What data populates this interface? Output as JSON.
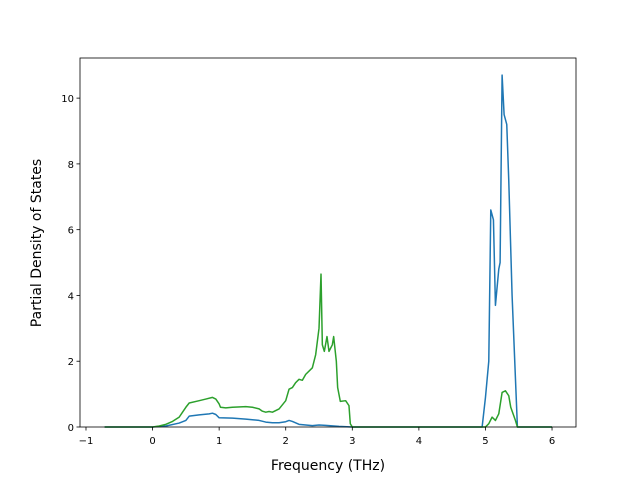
{
  "chart_data": {
    "type": "line",
    "x_label": "Frequency (THz)",
    "y_label": "Partial Density of States",
    "xlim": [
      -1.09,
      6.36
    ],
    "ylim": [
      0,
      11.22
    ],
    "xticks": [
      {
        "value": -1,
        "label": "−1"
      },
      0,
      1,
      2,
      3,
      4,
      5,
      6
    ],
    "yticks": [
      0,
      2,
      4,
      6,
      8,
      10
    ],
    "grid": false,
    "series": [
      {
        "color": "#1f77b4",
        "x": [
          -0.72,
          0,
          0.2,
          0.4,
          0.5,
          0.55,
          0.7,
          0.85,
          0.9,
          0.95,
          1.0,
          1.2,
          1.4,
          1.6,
          1.7,
          1.8,
          1.9,
          2.0,
          2.05,
          2.1,
          2.2,
          2.4,
          2.5,
          2.6,
          2.8,
          3.0,
          4.95,
          5.0,
          5.05,
          5.08,
          5.12,
          5.15,
          5.2,
          5.22,
          5.25,
          5.28,
          5.32,
          5.35,
          5.4,
          5.45,
          5.48,
          6.0
        ],
        "values": [
          0,
          0,
          0.03,
          0.12,
          0.2,
          0.33,
          0.37,
          0.4,
          0.42,
          0.38,
          0.28,
          0.27,
          0.24,
          0.2,
          0.15,
          0.13,
          0.13,
          0.16,
          0.2,
          0.17,
          0.08,
          0.04,
          0.06,
          0.05,
          0.02,
          0,
          0,
          0.9,
          2.0,
          6.6,
          6.3,
          3.7,
          4.8,
          5.0,
          10.7,
          9.5,
          9.2,
          7.5,
          4.0,
          1.5,
          0,
          0
        ]
      },
      {
        "color": "#2ca02c",
        "x": [
          -0.72,
          0,
          0.1,
          0.2,
          0.3,
          0.4,
          0.45,
          0.5,
          0.55,
          0.7,
          0.8,
          0.9,
          0.95,
          1.0,
          1.02,
          1.1,
          1.2,
          1.4,
          1.5,
          1.6,
          1.65,
          1.7,
          1.75,
          1.8,
          1.9,
          2.0,
          2.05,
          2.1,
          2.15,
          2.2,
          2.25,
          2.3,
          2.4,
          2.45,
          2.5,
          2.53,
          2.55,
          2.58,
          2.62,
          2.65,
          2.7,
          2.72,
          2.76,
          2.78,
          2.82,
          2.9,
          2.95,
          2.97,
          3.0,
          5.0,
          5.05,
          5.1,
          5.15,
          5.2,
          5.25,
          5.3,
          5.35,
          5.38,
          5.45,
          5.48,
          6.0
        ],
        "values": [
          0,
          0,
          0.03,
          0.08,
          0.17,
          0.3,
          0.45,
          0.6,
          0.73,
          0.8,
          0.85,
          0.9,
          0.85,
          0.7,
          0.6,
          0.58,
          0.6,
          0.62,
          0.6,
          0.55,
          0.48,
          0.45,
          0.47,
          0.45,
          0.55,
          0.8,
          1.15,
          1.2,
          1.35,
          1.45,
          1.42,
          1.6,
          1.8,
          2.2,
          3.0,
          4.65,
          2.5,
          2.3,
          2.75,
          2.3,
          2.5,
          2.75,
          2.0,
          1.2,
          0.78,
          0.8,
          0.65,
          0.1,
          0,
          0,
          0.1,
          0.3,
          0.2,
          0.4,
          1.05,
          1.1,
          0.95,
          0.6,
          0.2,
          0,
          0
        ]
      }
    ]
  }
}
